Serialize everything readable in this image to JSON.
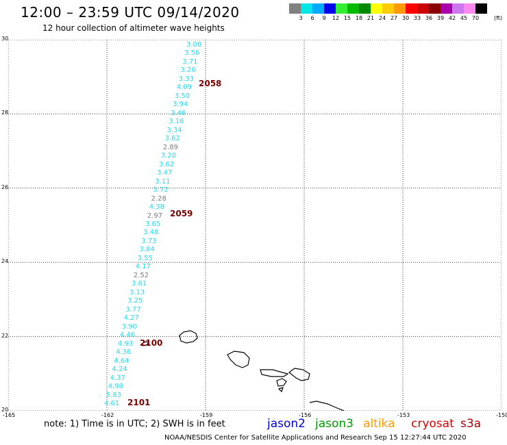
{
  "header": {
    "title": "12:00 – 23:59 UTC 09/14/2020",
    "subtitle": "12 hour collection of altimeter wave heights"
  },
  "scale": {
    "colors": [
      "#808080",
      "#00e6e6",
      "#00aaff",
      "#0000ee",
      "#33ee33",
      "#00bb00",
      "#008800",
      "#ffff00",
      "#ffcc00",
      "#ff9900",
      "#ff0000",
      "#cc0000",
      "#880000",
      "#aa00aa",
      "#cc77ee",
      "#ff88ee",
      "#000000"
    ],
    "labels": [
      "3",
      "6",
      "9",
      "12",
      "15",
      "18",
      "21",
      "24",
      "27",
      "30",
      "33",
      "36",
      "39",
      "42",
      "45",
      "70"
    ],
    "unit": "(ft)"
  },
  "axes": {
    "x_ticks": [
      "-165",
      "-162",
      "-159",
      "-156",
      "-153",
      "-150"
    ],
    "y_ticks": [
      "20",
      "22",
      "24",
      "26",
      "28",
      "30"
    ],
    "lon_range": [
      -165,
      -150
    ],
    "lat_range": [
      20,
      30
    ]
  },
  "track": {
    "values": [
      "3.08",
      "3.56",
      "3.71",
      "3.26",
      "3.33",
      "4.09",
      "3.50",
      "3.94",
      "3.46",
      "3.16",
      "3.34",
      "3.62",
      "2.89",
      "3.20",
      "3.62",
      "3.47",
      "3.11",
      "3.72",
      "2.28",
      "4.38",
      "2.97",
      "3.65",
      "3.48",
      "3.73",
      "3.84",
      "3.55",
      "4.17",
      "2.52",
      "3.61",
      "3.13",
      "3.25",
      "3.77",
      "4.27",
      "3.90",
      "4.46",
      "4.93",
      "4.36",
      "4.64",
      "4.24",
      "4.37",
      "4.98",
      "5.83",
      "4.61"
    ],
    "gray_indices": [
      12,
      18,
      20,
      27
    ],
    "time_labels": [
      {
        "text": "2058",
        "lat": 28.8
      },
      {
        "text": "2059",
        "lat": 25.3
      },
      {
        "text": "2100",
        "lat": 21.8
      },
      {
        "text": "2101",
        "lat": 20.2
      }
    ]
  },
  "note": "note: 1) Time is in UTC; 2) SWH is in feet",
  "satellites": [
    {
      "name": "jason2",
      "color": "#0000dd"
    },
    {
      "name": "jason3",
      "color": "#009900"
    },
    {
      "name": "altika",
      "color": "#ff9900"
    },
    {
      "name": "cryosat",
      "color": "#dd0000"
    },
    {
      "name": "s3a",
      "color": "#aa0000"
    }
  ],
  "credit": "NOAA/NESDIS Center for Satellite Applications and Research   Sep 15 12:27:44 UTC 2020"
}
